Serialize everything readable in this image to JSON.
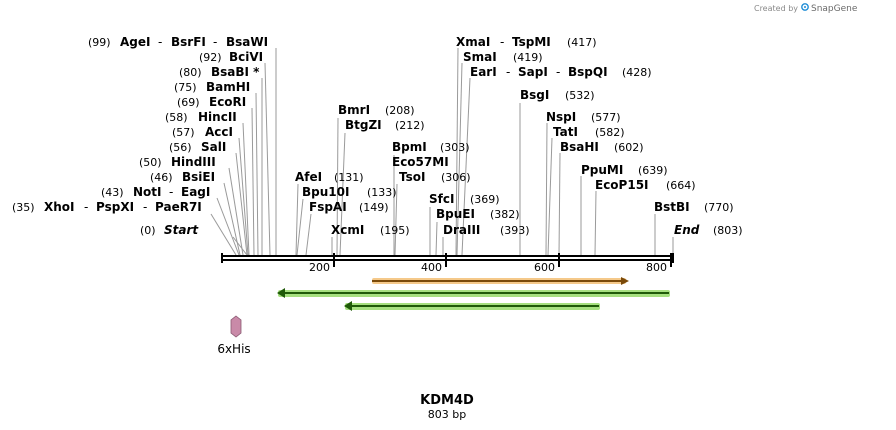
{
  "brand": {
    "prefix": "Created by",
    "name": "SnapGene"
  },
  "map": {
    "title": "KDM4D",
    "subtitle": "803 bp"
  },
  "axis": {
    "ticks": [
      "200",
      "400",
      "600",
      "800"
    ]
  },
  "ends": {
    "start": {
      "pos": "(0)",
      "name": "Start"
    },
    "end": {
      "name": "End",
      "pos": "(803)"
    }
  },
  "left_sites": [
    {
      "pos": "(99)",
      "names": [
        "AgeI",
        "BsrFI",
        "BsaWI"
      ]
    },
    {
      "pos": "(92)",
      "names": [
        "BciVI"
      ]
    },
    {
      "pos": "(80)",
      "names": [
        "BsaBI *"
      ]
    },
    {
      "pos": "(75)",
      "names": [
        "BamHI"
      ]
    },
    {
      "pos": "(69)",
      "names": [
        "EcoRI"
      ]
    },
    {
      "pos": "(58)",
      "names": [
        "HincII"
      ]
    },
    {
      "pos": "(57)",
      "names": [
        "AccI"
      ]
    },
    {
      "pos": "(56)",
      "names": [
        "SalI"
      ]
    },
    {
      "pos": "(50)",
      "names": [
        "HindIII"
      ]
    },
    {
      "pos": "(46)",
      "names": [
        "BsiEI"
      ]
    },
    {
      "pos": "(43)",
      "names": [
        "NotI",
        "EagI"
      ]
    },
    {
      "pos": "(35)",
      "names": [
        "XhoI",
        "PspXI",
        "PaeR7I"
      ]
    }
  ],
  "right_sites": [
    {
      "names": [
        "BmrI"
      ],
      "pos": "(208)"
    },
    {
      "names": [
        "BtgZI"
      ],
      "pos": "(212)"
    },
    {
      "names": [
        "AfeI"
      ],
      "pos": "(131)"
    },
    {
      "names": [
        "Bpu10I"
      ],
      "pos": "(133)"
    },
    {
      "names": [
        "FspAI"
      ],
      "pos": "(149)"
    },
    {
      "names": [
        "XcmI"
      ],
      "pos": "(195)"
    },
    {
      "names": [
        "BpmI"
      ],
      "pos": "(303)"
    },
    {
      "names": [
        "Eco57MI"
      ],
      "pos": ""
    },
    {
      "names": [
        "TsoI"
      ],
      "pos": "(306)"
    },
    {
      "names": [
        "SfcI"
      ],
      "pos": "(369)"
    },
    {
      "names": [
        "BpuEI"
      ],
      "pos": "(382)"
    },
    {
      "names": [
        "DraIII"
      ],
      "pos": "(393)"
    },
    {
      "names": [
        "XmaI",
        "TspMI"
      ],
      "pos": "(417)"
    },
    {
      "names": [
        "SmaI"
      ],
      "pos": "(419)"
    },
    {
      "names": [
        "EarI",
        "SapI",
        "BspQI"
      ],
      "pos": "(428)"
    },
    {
      "names": [
        "BsgI"
      ],
      "pos": "(532)"
    },
    {
      "names": [
        "NspI"
      ],
      "pos": "(577)"
    },
    {
      "names": [
        "TatI"
      ],
      "pos": "(582)"
    },
    {
      "names": [
        "BsaHI"
      ],
      "pos": "(602)"
    },
    {
      "names": [
        "PpuMI"
      ],
      "pos": "(639)"
    },
    {
      "names": [
        "EcoP15I"
      ],
      "pos": "(664)"
    },
    {
      "names": [
        "BstBI"
      ],
      "pos": "(770)"
    }
  ],
  "features": [
    {
      "name": "6xHis",
      "color": "#c98aa8"
    }
  ],
  "colors": {
    "orange_arrow": "#e8a13a",
    "green_arrow": "#5cbf2a",
    "backbone": "#000000"
  }
}
